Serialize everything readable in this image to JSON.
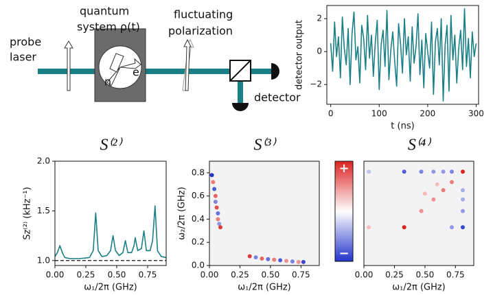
{
  "diagram": {
    "probe_line1": "probe",
    "probe_line2": "laser",
    "system_line1": "quantum",
    "system_line2": "system ρ(t)",
    "polarization_line1": "fluctuating",
    "polarization_line2": "polarization",
    "detector": "detector",
    "axis_n": "n",
    "axis_e": "e"
  },
  "chart_data": [
    {
      "type": "line",
      "ylabel": "detector output",
      "xlabel": "t (ns)",
      "color": "#1a7f86",
      "x": [
        0,
        4,
        8,
        12,
        16,
        20,
        24,
        28,
        32,
        36,
        40,
        44,
        48,
        52,
        56,
        60,
        64,
        68,
        72,
        76,
        80,
        84,
        88,
        92,
        96,
        100,
        104,
        108,
        112,
        116,
        120,
        124,
        128,
        132,
        136,
        140,
        144,
        148,
        152,
        156,
        160,
        164,
        168,
        172,
        176,
        180,
        184,
        188,
        192,
        196,
        200,
        204,
        208,
        212,
        216,
        220,
        224,
        228,
        232,
        236,
        240,
        244,
        248,
        252,
        256,
        260,
        264,
        268,
        272,
        276,
        280,
        284,
        288,
        292,
        296,
        300
      ],
      "values": [
        0.5,
        -1.2,
        1.8,
        -0.3,
        0.9,
        -1.6,
        2.1,
        0.2,
        -0.8,
        1.4,
        -2.0,
        1.1,
        2.4,
        -0.5,
        0.3,
        -1.9,
        1.6,
        0.8,
        -1.1,
        2.2,
        -0.4,
        1.0,
        -1.5,
        0.6,
        1.9,
        -2.3,
        0.4,
        1.3,
        -0.9,
        2.5,
        -1.7,
        0.1,
        1.2,
        -0.6,
        -2.1,
        1.7,
        0.5,
        -1.3,
        2.0,
        -0.2,
        0.9,
        -1.8,
        1.5,
        -0.7,
        0.3,
        2.3,
        -1.4,
        0.7,
        -2.2,
        1.1,
        0.0,
        -1.0,
        1.8,
        -2.6,
        0.6,
        1.4,
        -0.8,
        2.0,
        -3.0,
        0.4,
        1.6,
        -2.4,
        2.2,
        -0.5,
        1.0,
        -1.9,
        0.2,
        1.3,
        -1.1,
        2.6,
        -0.9,
        0.8,
        -1.6,
        1.2,
        -0.3,
        0.5
      ],
      "xlim": [
        -8,
        305
      ],
      "ylim": [
        -3.2,
        2.8
      ],
      "xticks": [
        0,
        100,
        200,
        300
      ],
      "yticks": [
        {
          "value": -2,
          "label": "−2"
        },
        0,
        2
      ]
    },
    {
      "type": "line",
      "title": "S⁽²⁾",
      "ylabel": "Sz⁽²⁾ (kHz⁻¹)",
      "xlabel": "ω₁/2π (GHz)",
      "color": "#1a7f86",
      "reference_line": 1,
      "x": [
        0,
        0.02,
        0.04,
        0.06,
        0.08,
        0.12,
        0.2,
        0.28,
        0.31,
        0.33,
        0.35,
        0.38,
        0.42,
        0.45,
        0.47,
        0.49,
        0.52,
        0.55,
        0.57,
        0.59,
        0.62,
        0.64,
        0.65,
        0.67,
        0.7,
        0.72,
        0.74,
        0.77,
        0.79,
        0.81,
        0.83,
        0.86,
        0.9
      ],
      "values": [
        1.04,
        1.08,
        1.15,
        1.08,
        1.03,
        1.02,
        1.02,
        1.03,
        1.1,
        1.48,
        1.1,
        1.04,
        1.05,
        1.1,
        1.25,
        1.1,
        1.05,
        1.08,
        1.2,
        1.08,
        1.08,
        1.15,
        1.23,
        1.1,
        1.12,
        1.3,
        1.1,
        1.1,
        1.2,
        1.55,
        1.1,
        1.04,
        1.03
      ],
      "xlim": [
        0,
        0.9
      ],
      "ylim": [
        0.95,
        2.0
      ],
      "xticks": [
        {
          "value": 0,
          "label": "0.00"
        },
        0.25,
        {
          "value": 0.5,
          "label": "0.50"
        },
        0.75
      ],
      "yticks": [
        {
          "value": 1,
          "label": "1.0"
        },
        1.5,
        {
          "value": 2,
          "label": "2.0"
        }
      ]
    },
    {
      "type": "heatmap",
      "title": "S⁽³⁾",
      "ylabel": "ω₂/2π (GHz)",
      "xlabel": "ω₁/2π (GHz)",
      "colormap": [
        "#2233cc",
        "#ffffff",
        "#dd2222"
      ],
      "clim": [
        -1,
        1
      ],
      "x": [
        0.02,
        0.03,
        0.04,
        0.05,
        0.05,
        0.06,
        0.07,
        0.07,
        0.08,
        0.09,
        0.33,
        0.38,
        0.43,
        0.48,
        0.53,
        0.58,
        0.63,
        0.68,
        0.73,
        0.77
      ],
      "y": [
        0.78,
        0.72,
        0.66,
        0.6,
        0.55,
        0.5,
        0.45,
        0.4,
        0.36,
        0.33,
        0.08,
        0.07,
        0.06,
        0.055,
        0.05,
        0.045,
        0.04,
        0.035,
        0.03,
        0.03
      ],
      "values": [
        -1,
        0.6,
        -0.8,
        0.7,
        -0.6,
        0.8,
        -0.7,
        0.6,
        -0.5,
        0.9,
        0.9,
        -0.6,
        0.7,
        -0.7,
        0.6,
        -0.8,
        0.5,
        -0.6,
        0.5,
        -0.9
      ],
      "xlim": [
        0,
        0.9
      ],
      "ylim": [
        0,
        0.9
      ],
      "xticks": [
        {
          "value": 0,
          "label": "0.00"
        },
        0.25,
        {
          "value": 0.5,
          "label": "0.50"
        },
        0.75
      ],
      "yticks": [
        {
          "value": 0,
          "label": "0.0"
        },
        0.2,
        0.4,
        0.6,
        0.8
      ]
    },
    {
      "type": "heatmap",
      "title": "S⁽⁴⁾",
      "xlabel": "ω₁/2π (GHz)",
      "colormap": [
        "#2233cc",
        "#ffffff",
        "#dd2222"
      ],
      "clim": [
        -1,
        1
      ],
      "colorbar_labels": [
        "+",
        "−"
      ],
      "x": [
        0.33,
        0.47,
        0.57,
        0.65,
        0.72,
        0.81,
        0.81,
        0.33,
        0.47,
        0.57,
        0.65,
        0.72,
        0.81,
        0.81,
        0.81,
        0.04,
        0.04,
        0.72,
        0.5,
        0.6
      ],
      "y": [
        0.33,
        0.47,
        0.57,
        0.65,
        0.72,
        0.81,
        0.33,
        0.81,
        0.81,
        0.81,
        0.81,
        0.81,
        0.47,
        0.57,
        0.65,
        0.81,
        0.33,
        0.33,
        0.62,
        0.7
      ],
      "values": [
        1,
        0.5,
        0.5,
        0.6,
        0.6,
        1,
        -0.9,
        -0.8,
        -0.6,
        -0.5,
        -0.5,
        -0.6,
        -0.5,
        -0.4,
        -0.4,
        -0.3,
        0.3,
        -0.5,
        0.3,
        0.3
      ],
      "xlim": [
        0,
        0.9
      ],
      "ylim": [
        0,
        0.9
      ],
      "xticks": [
        {
          "value": 0,
          "label": "0.00"
        },
        0.25,
        {
          "value": 0.5,
          "label": "0.50"
        },
        0.75
      ]
    }
  ]
}
